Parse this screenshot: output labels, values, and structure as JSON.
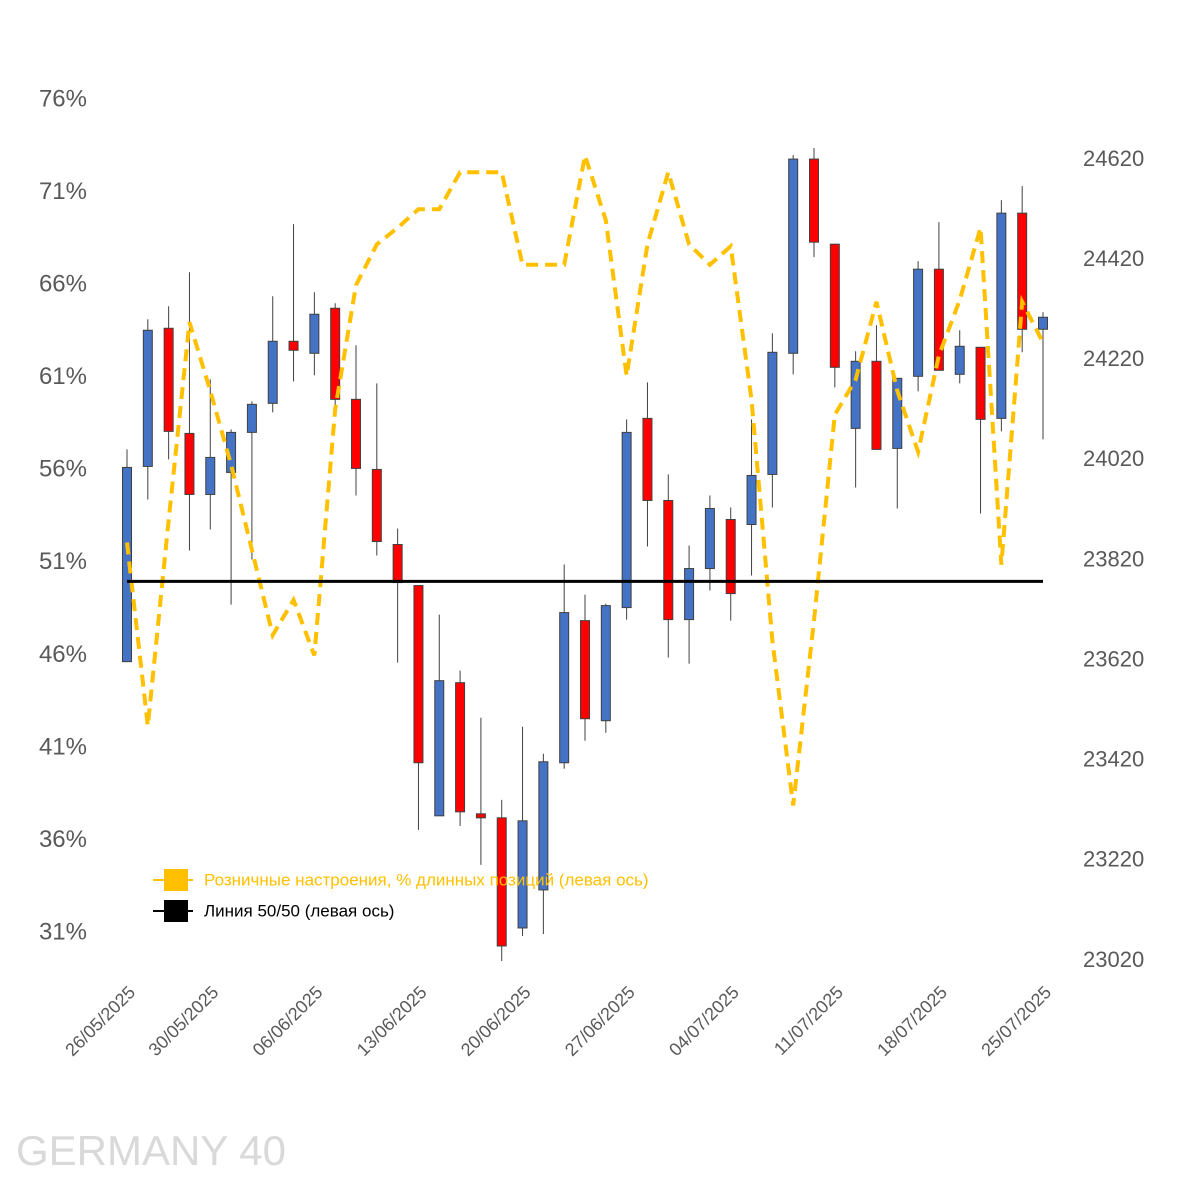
{
  "chart_data": {
    "type": "candlestick",
    "title": "GERMANY 40",
    "categories": [
      "26/05/2025",
      null,
      null,
      null,
      "30/05/2025",
      null,
      null,
      null,
      null,
      "06/06/2025",
      null,
      null,
      null,
      null,
      "13/06/2025",
      null,
      null,
      null,
      null,
      "20/06/2025",
      null,
      null,
      null,
      null,
      "27/06/2025",
      null,
      null,
      null,
      null,
      "04/07/2025",
      null,
      null,
      null,
      null,
      "11/07/2025",
      null,
      null,
      null,
      null,
      "18/07/2025",
      null,
      null,
      null,
      null,
      "25/07/2025"
    ],
    "open": [
      23618,
      24008,
      24284,
      24074,
      23952,
      23996,
      24076,
      24134,
      24258,
      24234,
      24324,
      24142,
      24002,
      23852,
      23770,
      23310,
      23576,
      23314,
      23306,
      23086,
      23162,
      23416,
      23700,
      23500,
      23726,
      24104,
      23940,
      23702,
      23804,
      23902,
      23892,
      23992,
      24234,
      24622,
      24452,
      24084,
      24218,
      24044,
      24188,
      24402,
      24192,
      24246,
      24104,
      24514,
      24282
    ],
    "high": [
      24042,
      24302,
      24328,
      24396,
      24182,
      24082,
      24138,
      24348,
      24492,
      24356,
      24334,
      24250,
      24174,
      23884,
      23770,
      23712,
      23600,
      23506,
      23342,
      23488,
      23434,
      23812,
      23752,
      23734,
      24102,
      24176,
      23992,
      23850,
      23950,
      23926,
      24102,
      24274,
      24630,
      24644,
      24452,
      24238,
      24290,
      24184,
      24418,
      24496,
      24280,
      24246,
      24540,
      24568,
      24316
    ],
    "low": [
      23618,
      23942,
      24022,
      23840,
      23882,
      23732,
      23822,
      24116,
      24178,
      24190,
      24126,
      23950,
      23830,
      23616,
      23282,
      23310,
      23290,
      23212,
      23020,
      23070,
      23074,
      23404,
      23460,
      23476,
      23702,
      23848,
      23626,
      23614,
      23760,
      23700,
      23790,
      23926,
      24192,
      24426,
      24166,
      23966,
      24042,
      23924,
      24158,
      24200,
      24174,
      23914,
      24078,
      24236,
      24062
    ],
    "close": [
      24006,
      24280,
      24078,
      23952,
      24026,
      24076,
      24132,
      24258,
      24240,
      24312,
      24142,
      24004,
      23858,
      23776,
      23416,
      23580,
      23318,
      23306,
      23050,
      23300,
      23418,
      23716,
      23504,
      23730,
      24076,
      23940,
      23702,
      23804,
      23924,
      23754,
      23990,
      24236,
      24622,
      24456,
      24206,
      24218,
      24042,
      24184,
      24402,
      24200,
      24248,
      24102,
      24514,
      24282,
      24306
    ],
    "candle_axis": "y2",
    "up_color": "#4472c4",
    "down_color": "#ff0000",
    "lines": [
      {
        "name": "Розничные настроения, % длинных позиций (левая ось)",
        "color": "#ffc000",
        "dashed": true,
        "values": [
          52.1,
          42.2,
          53.3,
          64.0,
          60.3,
          56.3,
          51.7,
          47.1,
          49.0,
          46.0,
          59.3,
          66.0,
          68.2,
          69.1,
          70.1,
          70.1,
          72.1,
          72.1,
          72.1,
          67.1,
          67.1,
          67.1,
          73.0,
          69.5,
          61.1,
          68.2,
          72.1,
          68.2,
          67.1,
          68.1,
          59.8,
          46.8,
          37.9,
          47.9,
          59.0,
          60.9,
          65.1,
          60.3,
          57.0,
          62.2,
          65.2,
          69.1,
          50.9,
          65.1,
          62.9
        ]
      },
      {
        "name": "Линия 50/50 (левая ось)",
        "color": "#000000",
        "dashed": false,
        "values": [
          50,
          50,
          50,
          50,
          50,
          50,
          50,
          50,
          50,
          50,
          50,
          50,
          50,
          50,
          50,
          50,
          50,
          50,
          50,
          50,
          50,
          50,
          50,
          50,
          50,
          50,
          50,
          50,
          50,
          50,
          50,
          50,
          50,
          50,
          50,
          50,
          50,
          50,
          50,
          50,
          50,
          50,
          50,
          50,
          50
        ]
      }
    ],
    "ylim": [
      29.5,
      76
    ],
    "yticks": [
      {
        "value": 31,
        "label": "31%"
      },
      {
        "value": 36,
        "label": "36%"
      },
      {
        "value": 41,
        "label": "41%"
      },
      {
        "value": 46,
        "label": "46%"
      },
      {
        "value": 51,
        "label": "51%"
      },
      {
        "value": 56,
        "label": "56%"
      },
      {
        "value": 61,
        "label": "61%"
      },
      {
        "value": 66,
        "label": "66%"
      },
      {
        "value": 71,
        "label": "71%"
      },
      {
        "value": 76,
        "label": "76%"
      }
    ],
    "y2lim": [
      23020,
      24740
    ],
    "y2ticks": [
      23020,
      23220,
      23420,
      23620,
      23820,
      24020,
      24220,
      24420,
      24620
    ]
  }
}
